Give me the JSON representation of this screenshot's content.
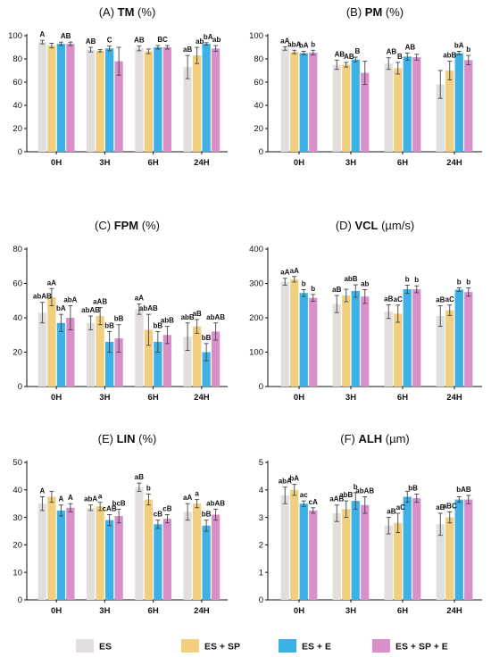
{
  "colors": {
    "ES": "#e3dede",
    "ES + SP": "#f2cf7e",
    "ES + E": "#3db1e6",
    "ES + SP + E": "#d98fc9",
    "error_bar": "#444444",
    "axis": "#111111"
  },
  "legend": {
    "position": "bottom",
    "items": [
      "ES",
      "ES + SP",
      "ES + E",
      "ES + SP + E"
    ]
  },
  "chart_data": [
    {
      "type": "bar",
      "panel": "(A)",
      "title_prefix": "(A) ",
      "title_bold": "TM",
      "title_suffix": " (%)",
      "categories": [
        "0H",
        "3H",
        "6H",
        "24H"
      ],
      "ylim": [
        0,
        100
      ],
      "yticks": [
        0,
        20,
        40,
        60,
        80,
        100
      ],
      "grid": false,
      "series": [
        {
          "name": "ES",
          "values": [
            94.5,
            88,
            89,
            73
          ],
          "errors": [
            1.5,
            2,
            2,
            10
          ]
        },
        {
          "name": "ES + SP",
          "values": [
            91.5,
            87,
            86.5,
            83
          ],
          "errors": [
            2,
            1,
            2,
            7
          ]
        },
        {
          "name": "ES + E",
          "values": [
            93,
            89,
            90,
            93
          ],
          "errors": [
            1.5,
            2,
            1.5,
            1
          ]
        },
        {
          "name": "ES + SP + E",
          "values": [
            93,
            78,
            90,
            89
          ],
          "errors": [
            1.5,
            12,
            1.5,
            2.5
          ]
        }
      ],
      "annotations": [
        {
          "category": 0,
          "series": 0,
          "text": "A"
        },
        {
          "category": 0,
          "series": 2.5,
          "text": "AB"
        },
        {
          "category": 1,
          "series": 0,
          "text": "AB"
        },
        {
          "category": 1,
          "series": 2,
          "text": "C"
        },
        {
          "category": 2,
          "series": 0,
          "text": "AB"
        },
        {
          "category": 2,
          "series": 2.5,
          "text": "BC"
        },
        {
          "category": 3,
          "series": 0,
          "text": "aB"
        },
        {
          "category": 3,
          "series": 1.3,
          "text": "ab"
        },
        {
          "category": 3,
          "series": 2.2,
          "text": "bA"
        },
        {
          "category": 3,
          "series": 3.1,
          "text": "ab"
        }
      ]
    },
    {
      "type": "bar",
      "panel": "(B)",
      "title_prefix": "(B) ",
      "title_bold": "PM",
      "title_suffix": " (%)",
      "categories": [
        "0H",
        "3H",
        "6H",
        "24H"
      ],
      "ylim": [
        0,
        100
      ],
      "yticks": [
        0,
        20,
        40,
        60,
        80,
        100
      ],
      "grid": false,
      "series": [
        {
          "name": "ES",
          "values": [
            89,
            75,
            76,
            58
          ],
          "errors": [
            1.5,
            4,
            5,
            12
          ]
        },
        {
          "name": "ES + SP",
          "values": [
            86,
            75,
            72,
            70
          ],
          "errors": [
            1.5,
            2,
            5,
            8
          ]
        },
        {
          "name": "ES + E",
          "values": [
            85,
            79.5,
            82,
            85
          ],
          "errors": [
            1.5,
            2,
            3,
            1.5
          ]
        },
        {
          "name": "ES + SP + E",
          "values": [
            85.5,
            68,
            81.5,
            79
          ],
          "errors": [
            2,
            10,
            2.5,
            4
          ]
        }
      ],
      "annotations": [
        {
          "category": 0,
          "series": 0,
          "text": "aA"
        },
        {
          "category": 0,
          "series": 1,
          "text": "abA"
        },
        {
          "category": 0,
          "series": 2,
          "text": "bA"
        },
        {
          "category": 0,
          "series": 3,
          "text": "b"
        },
        {
          "category": 1,
          "series": 0.3,
          "text": "AB"
        },
        {
          "category": 1,
          "series": 1.3,
          "text": "AB"
        },
        {
          "category": 1,
          "series": 2.2,
          "text": "B"
        },
        {
          "category": 2,
          "series": 0.3,
          "text": "AB"
        },
        {
          "category": 2,
          "series": 1.2,
          "text": "B"
        },
        {
          "category": 2,
          "series": 2.3,
          "text": "AB"
        },
        {
          "category": 3,
          "series": 1,
          "text": "abB"
        },
        {
          "category": 3,
          "series": 2,
          "text": "bA"
        },
        {
          "category": 3,
          "series": 3,
          "text": "b"
        }
      ]
    },
    {
      "type": "bar",
      "panel": "(C)",
      "title_prefix": "(C) ",
      "title_bold": "FPM",
      "title_suffix": " (%)",
      "categories": [
        "0H",
        "3H",
        "6H",
        "24H"
      ],
      "ylim": [
        0,
        80
      ],
      "yticks": [
        0,
        20,
        40,
        60,
        80
      ],
      "grid": false,
      "series": [
        {
          "name": "ES",
          "values": [
            43,
            37,
            45,
            29
          ],
          "errors": [
            6,
            4,
            3,
            8
          ]
        },
        {
          "name": "ES + SP",
          "values": [
            52,
            41,
            33,
            35
          ],
          "errors": [
            5,
            5,
            9,
            4
          ]
        },
        {
          "name": "ES + E",
          "values": [
            37,
            26,
            26,
            20
          ],
          "errors": [
            5,
            6,
            6,
            5
          ]
        },
        {
          "name": "ES + SP + E",
          "values": [
            40,
            28,
            30,
            32
          ],
          "errors": [
            7,
            8,
            5,
            5
          ]
        }
      ],
      "annotations": [
        {
          "category": 0,
          "series": 0,
          "text": "abAB"
        },
        {
          "category": 0,
          "series": 1,
          "text": "aA"
        },
        {
          "category": 0,
          "series": 2,
          "text": "bA"
        },
        {
          "category": 0,
          "series": 3,
          "text": "abA"
        },
        {
          "category": 1,
          "series": 0,
          "text": "abAB"
        },
        {
          "category": 1,
          "series": 1,
          "text": "aAB"
        },
        {
          "category": 1,
          "series": 2,
          "text": "bB"
        },
        {
          "category": 1,
          "series": 3,
          "text": "bB"
        },
        {
          "category": 2,
          "series": 0,
          "text": "aA"
        },
        {
          "category": 2,
          "series": 1,
          "text": "abAB"
        },
        {
          "category": 2,
          "series": 2,
          "text": "bB"
        },
        {
          "category": 2,
          "series": 3,
          "text": "abB"
        },
        {
          "category": 3,
          "series": 0,
          "text": "abB"
        },
        {
          "category": 3,
          "series": 1,
          "text": "aB"
        },
        {
          "category": 3,
          "series": 2,
          "text": "bB"
        },
        {
          "category": 3,
          "series": 3,
          "text": "abAB"
        }
      ]
    },
    {
      "type": "bar",
      "panel": "(D)",
      "title_prefix": "(D) ",
      "title_bold": "VCL",
      "title_suffix": " (µm/s)",
      "categories": [
        "0H",
        "3H",
        "6H",
        "24H"
      ],
      "ylim": [
        0,
        400
      ],
      "yticks": [
        0,
        100,
        200,
        300,
        400
      ],
      "grid": false,
      "series": [
        {
          "name": "ES",
          "values": [
            305,
            240,
            218,
            205
          ],
          "errors": [
            10,
            25,
            20,
            30
          ]
        },
        {
          "name": "ES + SP",
          "values": [
            312,
            265,
            212,
            222
          ],
          "errors": [
            8,
            18,
            25,
            15
          ]
        },
        {
          "name": "ES + E",
          "values": [
            272,
            278,
            283,
            282
          ],
          "errors": [
            10,
            18,
            12,
            5
          ]
        },
        {
          "name": "ES + SP + E",
          "values": [
            258,
            262,
            283,
            275
          ],
          "errors": [
            10,
            20,
            10,
            12
          ]
        }
      ],
      "annotations": [
        {
          "category": 0,
          "series": 0,
          "text": "aA"
        },
        {
          "category": 0,
          "series": 1,
          "text": "aA"
        },
        {
          "category": 0,
          "series": 2,
          "text": "b"
        },
        {
          "category": 0,
          "series": 3,
          "text": "b"
        },
        {
          "category": 1,
          "series": 0,
          "text": "aB"
        },
        {
          "category": 1,
          "series": 1.5,
          "text": "abB"
        },
        {
          "category": 1,
          "series": 3,
          "text": "ab"
        },
        {
          "category": 2,
          "series": 0,
          "text": "aB"
        },
        {
          "category": 2,
          "series": 1,
          "text": "aC"
        },
        {
          "category": 2,
          "series": 2,
          "text": "b"
        },
        {
          "category": 2,
          "series": 3,
          "text": "b"
        },
        {
          "category": 3,
          "series": 0,
          "text": "aB"
        },
        {
          "category": 3,
          "series": 1,
          "text": "aC"
        },
        {
          "category": 3,
          "series": 2,
          "text": "b"
        },
        {
          "category": 3,
          "series": 3,
          "text": "b"
        }
      ]
    },
    {
      "type": "bar",
      "panel": "(E)",
      "title_prefix": "(E) ",
      "title_bold": "LIN",
      "title_suffix": " (%)",
      "categories": [
        "0H",
        "3H",
        "6H",
        "24H"
      ],
      "ylim": [
        0,
        50
      ],
      "yticks": [
        0,
        10,
        20,
        30,
        40,
        50
      ],
      "grid": false,
      "series": [
        {
          "name": "ES",
          "values": [
            35,
            33.5,
            41,
            32
          ],
          "errors": [
            2.5,
            1,
            1.5,
            3
          ]
        },
        {
          "name": "ES + SP",
          "values": [
            37.5,
            34,
            36.5,
            35
          ],
          "errors": [
            2,
            1.5,
            2,
            1.5
          ]
        },
        {
          "name": "ES + E",
          "values": [
            32.5,
            29,
            27.5,
            27
          ],
          "errors": [
            2,
            2,
            1.5,
            2
          ]
        },
        {
          "name": "ES + SP + E",
          "values": [
            33.5,
            30.5,
            29.5,
            31
          ],
          "errors": [
            1.5,
            2.5,
            1.5,
            2
          ]
        }
      ],
      "annotations": [
        {
          "category": 0,
          "series": 0,
          "text": "A"
        },
        {
          "category": 0,
          "series": 2,
          "text": "A"
        },
        {
          "category": 0,
          "series": 3,
          "text": "A"
        },
        {
          "category": 1,
          "series": 0,
          "text": "abA"
        },
        {
          "category": 1,
          "series": 1,
          "text": "a"
        },
        {
          "category": 1,
          "series": 2,
          "text": "cAB"
        },
        {
          "category": 1,
          "series": 3,
          "text": "bcB"
        },
        {
          "category": 2,
          "series": 0,
          "text": "aB"
        },
        {
          "category": 2,
          "series": 1,
          "text": "b"
        },
        {
          "category": 2,
          "series": 2,
          "text": "cB"
        },
        {
          "category": 2,
          "series": 3,
          "text": "cB"
        },
        {
          "category": 3,
          "series": 0,
          "text": "aA"
        },
        {
          "category": 3,
          "series": 1,
          "text": "a"
        },
        {
          "category": 3,
          "series": 2,
          "text": "bB"
        },
        {
          "category": 3,
          "series": 3,
          "text": "abAB"
        }
      ]
    },
    {
      "type": "bar",
      "panel": "(F)",
      "title_prefix": "(F) ",
      "title_bold": "ALH",
      "title_suffix": " (µm)",
      "categories": [
        "0H",
        "3H",
        "6H",
        "24H"
      ],
      "ylim": [
        0,
        5
      ],
      "yticks": [
        0,
        1,
        2,
        3,
        4,
        5
      ],
      "grid": false,
      "series": [
        {
          "name": "ES",
          "values": [
            3.8,
            3.15,
            2.7,
            2.75
          ],
          "errors": [
            0.3,
            0.3,
            0.3,
            0.4
          ]
        },
        {
          "name": "ES + SP",
          "values": [
            4.0,
            3.3,
            2.8,
            3.0
          ],
          "errors": [
            0.2,
            0.3,
            0.35,
            0.2
          ]
        },
        {
          "name": "ES + E",
          "values": [
            3.5,
            3.6,
            3.75,
            3.65
          ],
          "errors": [
            0.1,
            0.3,
            0.2,
            0.1
          ]
        },
        {
          "name": "ES + SP + E",
          "values": [
            3.25,
            3.45,
            3.7,
            3.65
          ],
          "errors": [
            0.1,
            0.3,
            0.15,
            0.15
          ]
        }
      ],
      "annotations": [
        {
          "category": 0,
          "series": 0,
          "text": "abA"
        },
        {
          "category": 0,
          "series": 1,
          "text": "bA"
        },
        {
          "category": 0,
          "series": 2,
          "text": "ac"
        },
        {
          "category": 0,
          "series": 3,
          "text": "cA"
        },
        {
          "category": 1,
          "series": 0,
          "text": "aAB"
        },
        {
          "category": 1,
          "series": 1,
          "text": "abB"
        },
        {
          "category": 1,
          "series": 2,
          "text": "b"
        },
        {
          "category": 1,
          "series": 3,
          "text": "abAB"
        },
        {
          "category": 2,
          "series": 0.3,
          "text": "aB"
        },
        {
          "category": 2,
          "series": 1.3,
          "text": "aC"
        },
        {
          "category": 2,
          "series": 2.6,
          "text": "bB"
        },
        {
          "category": 3,
          "series": 0,
          "text": "aB"
        },
        {
          "category": 3,
          "series": 1,
          "text": "aBC"
        },
        {
          "category": 3,
          "series": 2.5,
          "text": "bAB"
        }
      ]
    }
  ]
}
